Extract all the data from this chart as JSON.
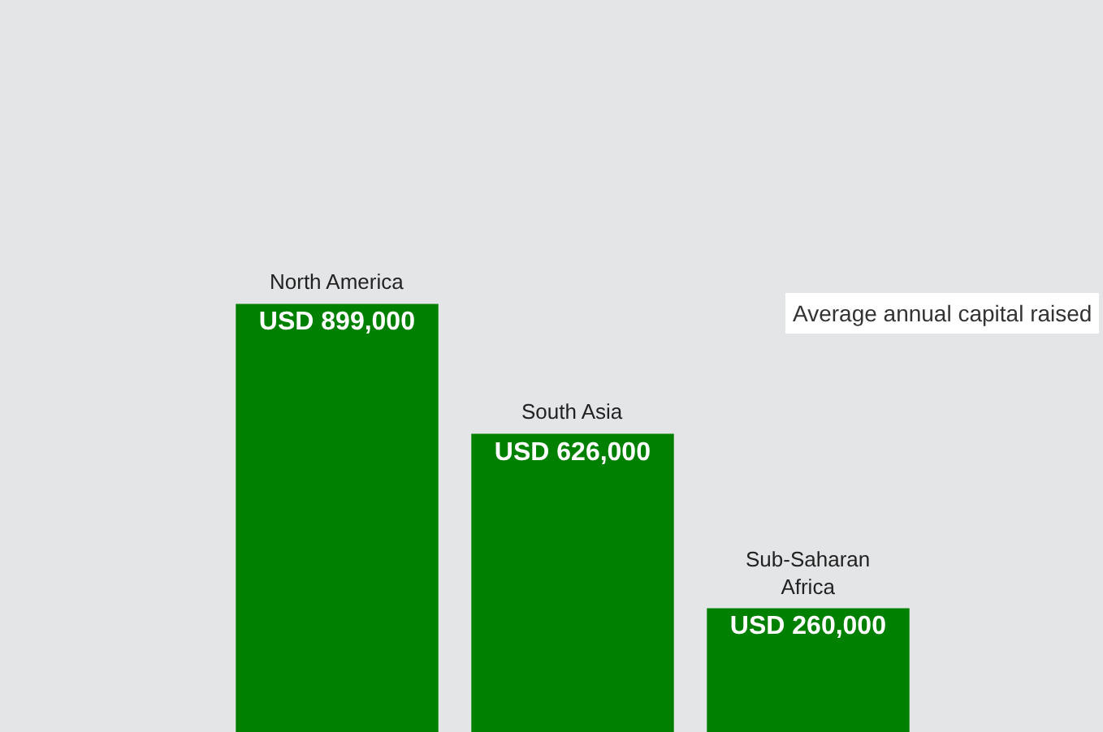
{
  "chart_data": {
    "type": "bar",
    "categories": [
      "North America",
      "South Asia",
      "Sub-Saharan Africa"
    ],
    "values": [
      899000,
      626000,
      260000
    ],
    "value_labels": [
      "USD 899,000",
      "USD 626,000",
      "USD 260,000"
    ],
    "color": "#008000",
    "ylim": [
      0,
      1537000
    ],
    "annotations": [
      "Average annual capital raised"
    ],
    "grid": false,
    "legend": false
  }
}
